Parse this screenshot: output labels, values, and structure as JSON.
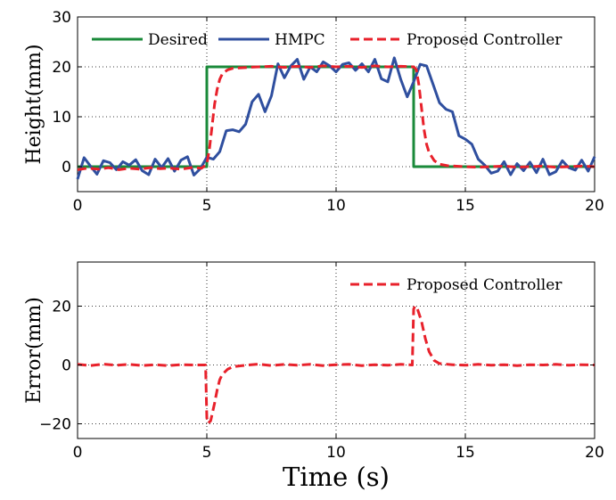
{
  "chart_data": [
    {
      "type": "line",
      "ylabel": "Height(mm)",
      "xlabel": "",
      "xlim": [
        0,
        20
      ],
      "ylim": [
        -5,
        30
      ],
      "x_ticks": [
        "0",
        "5",
        "10",
        "15",
        "20"
      ],
      "y_ticks": [
        {
          "value": 0,
          "label": "0"
        },
        {
          "value": 10,
          "label": "10"
        },
        {
          "value": 20,
          "label": "20"
        },
        {
          "value": 30,
          "label": "30"
        }
      ],
      "grid": true,
      "legend_position": "top",
      "series": [
        {
          "name": "Desired",
          "color": "#1a8a3a",
          "style": "solid",
          "x": [
            0,
            5,
            5,
            13,
            13,
            20
          ],
          "values": [
            0,
            0,
            20,
            20,
            0,
            0
          ]
        },
        {
          "name": "HMPC",
          "color": "#2f4f9f",
          "style": "solid",
          "x": [
            0,
            0.25,
            0.5,
            0.75,
            1,
            1.25,
            1.5,
            1.75,
            2,
            2.25,
            2.5,
            2.75,
            3,
            3.25,
            3.5,
            3.75,
            4,
            4.25,
            4.5,
            4.75,
            5,
            5.25,
            5.5,
            5.75,
            6,
            6.25,
            6.5,
            6.75,
            7,
            7.25,
            7.5,
            7.75,
            8,
            8.25,
            8.5,
            8.75,
            9,
            9.25,
            9.5,
            9.75,
            10,
            10.25,
            10.5,
            10.75,
            11,
            11.25,
            11.5,
            11.75,
            12,
            12.25,
            12.5,
            12.75,
            13,
            13.25,
            13.5,
            13.75,
            14,
            14.25,
            14.5,
            14.75,
            15,
            15.25,
            15.5,
            15.75,
            16,
            16.25,
            16.5,
            16.75,
            17,
            17.25,
            17.5,
            17.75,
            18,
            18.25,
            18.5,
            18.75,
            19,
            19.25,
            19.5,
            19.75,
            20
          ],
          "values": [
            -2.5,
            1.8,
            0.1,
            -1.5,
            1.2,
            0.8,
            -0.6,
            1.0,
            0.3,
            1.4,
            -0.8,
            -1.6,
            1.5,
            -0.2,
            1.6,
            -0.9,
            1.3,
            2.0,
            -1.7,
            -0.4,
            1.9,
            1.5,
            3.0,
            7.2,
            7.4,
            7.0,
            8.5,
            13.0,
            14.5,
            11.0,
            14.2,
            20.6,
            17.8,
            20.2,
            21.5,
            17.5,
            20.0,
            19.0,
            21.0,
            20.2,
            19.0,
            20.5,
            20.8,
            19.3,
            20.6,
            19.0,
            21.5,
            17.6,
            17.0,
            21.8,
            17.5,
            14.0,
            17.0,
            20.5,
            20.2,
            16.5,
            12.8,
            11.5,
            11.0,
            6.2,
            5.5,
            4.5,
            1.5,
            0.3,
            -1.3,
            -0.9,
            1.0,
            -1.6,
            0.6,
            -0.8,
            0.9,
            -1.2,
            1.5,
            -1.6,
            -1.0,
            1.2,
            -0.2,
            -0.7,
            1.3,
            -0.9,
            2.0
          ]
        },
        {
          "name": "Proposed Controller",
          "color": "#e8212b",
          "style": "dashed",
          "x": [
            0,
            0.4,
            0.8,
            1.2,
            1.6,
            2.0,
            2.4,
            2.8,
            3.2,
            3.6,
            4.0,
            4.4,
            4.8,
            5.0,
            5.1,
            5.2,
            5.3,
            5.4,
            5.5,
            5.6,
            5.8,
            6.0,
            6.3,
            6.6,
            7.0,
            7.5,
            8.0,
            8.5,
            9.0,
            9.5,
            10.0,
            10.5,
            11.0,
            11.5,
            12.0,
            12.5,
            13.0,
            13.1,
            13.2,
            13.3,
            13.4,
            13.5,
            13.6,
            13.8,
            14.0,
            14.3,
            14.6,
            15.0,
            15.5,
            16.0,
            16.5,
            17.0,
            17.5,
            18.0,
            18.5,
            19.0,
            19.5,
            20.0
          ],
          "values": [
            -0.6,
            -0.3,
            -0.5,
            -0.2,
            -0.6,
            -0.3,
            -0.5,
            -0.2,
            -0.4,
            -0.3,
            -0.5,
            -0.2,
            -0.3,
            0.5,
            3.5,
            8.0,
            12.5,
            15.5,
            17.5,
            18.6,
            19.4,
            19.7,
            19.8,
            19.9,
            20.0,
            20.1,
            19.9,
            20.1,
            19.9,
            20.2,
            20.0,
            20.1,
            19.9,
            20.2,
            20.0,
            20.1,
            20.0,
            19.5,
            16.5,
            12.0,
            7.5,
            4.5,
            2.8,
            1.2,
            0.5,
            0.2,
            0.1,
            0.0,
            -0.1,
            0.0,
            0.1,
            -0.1,
            0.0,
            0.1,
            -0.1,
            0.0,
            0.1,
            0.0
          ]
        }
      ]
    },
    {
      "type": "line",
      "ylabel": "Error(mm)",
      "xlabel": "Time (s)",
      "xlim": [
        0,
        20
      ],
      "ylim": [
        -25,
        35
      ],
      "x_ticks": [
        "0",
        "5",
        "10",
        "15",
        "20"
      ],
      "y_ticks": [
        {
          "value": -20,
          "label": "−20"
        },
        {
          "value": 0,
          "label": "0"
        },
        {
          "value": 20,
          "label": "20"
        }
      ],
      "grid": true,
      "legend_position": "top-right",
      "series": [
        {
          "name": "Proposed Controller",
          "color": "#e8212b",
          "style": "dashed",
          "x": [
            0,
            0.5,
            1.0,
            1.5,
            2.0,
            2.5,
            3.0,
            3.5,
            4.0,
            4.5,
            4.95,
            5.0,
            5.05,
            5.15,
            5.3,
            5.4,
            5.5,
            5.6,
            5.8,
            6.0,
            6.5,
            7.0,
            7.5,
            8.0,
            8.5,
            9.0,
            9.5,
            10.0,
            10.5,
            11.0,
            11.5,
            12.0,
            12.5,
            12.95,
            13.0,
            13.05,
            13.15,
            13.3,
            13.45,
            13.6,
            13.8,
            14.0,
            14.5,
            15.0,
            15.5,
            16.0,
            16.5,
            17.0,
            17.5,
            18.0,
            18.5,
            19.0,
            19.5,
            20.0
          ],
          "values": [
            0.2,
            -0.2,
            0.3,
            -0.1,
            0.2,
            -0.2,
            0.1,
            -0.2,
            0.1,
            0.0,
            0.0,
            -18.0,
            -19.8,
            -19.0,
            -13.0,
            -8.5,
            -5.0,
            -3.2,
            -1.5,
            -0.6,
            -0.1,
            0.3,
            -0.2,
            0.2,
            -0.1,
            0.2,
            -0.2,
            0.1,
            0.2,
            -0.2,
            0.1,
            -0.1,
            0.2,
            0.0,
            19.0,
            20.0,
            19.0,
            15.0,
            9.0,
            4.5,
            1.5,
            0.5,
            0.1,
            -0.1,
            0.2,
            -0.1,
            0.1,
            -0.2,
            0.1,
            0.0,
            0.2,
            -0.1,
            0.1,
            0.0
          ]
        }
      ]
    }
  ]
}
